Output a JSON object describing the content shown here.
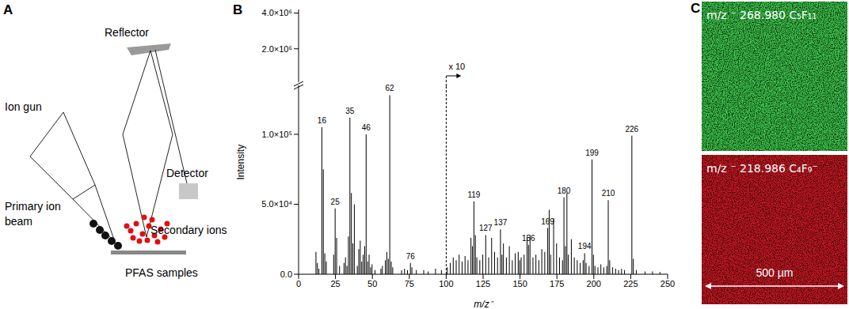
{
  "panel_labels": [
    "A",
    "B",
    "C"
  ],
  "diagram": {
    "reflector": "Reflector",
    "ion_gun": "Ion gun",
    "detector": "Detector",
    "primary_ion_beam": [
      "Primary ion",
      "beam"
    ],
    "secondary_ions": "Secondary ions",
    "sample": "PFAS samples"
  },
  "chart_data": [
    {
      "type": "bar",
      "ylim": [
        135000,
        4200000
      ],
      "yticks": [
        {
          "value": 2000000,
          "label": "2.0×10⁶"
        },
        {
          "value": 4000000,
          "label": "4.0×10⁶"
        }
      ],
      "tick_labels": "y"
    },
    {
      "type": "bar",
      "x_label": "m/z⁻",
      "y_label": "Intensity",
      "color": "#000000",
      "xlim": [
        0,
        250
      ],
      "xticks": [
        0,
        25,
        50,
        75,
        100,
        125,
        150,
        175,
        200,
        225,
        250
      ],
      "ylim": [
        0,
        135000
      ],
      "yticks": [
        {
          "value": 0,
          "label": "0.0"
        },
        {
          "value": 50000,
          "label": "5.0×10⁴"
        },
        {
          "value": 100000,
          "label": "1.0×10⁵"
        }
      ],
      "x": [
        12,
        13,
        14,
        16,
        17,
        18,
        19,
        24,
        25,
        26,
        28,
        31,
        32,
        33,
        34,
        35,
        36,
        37,
        38,
        40,
        41,
        42,
        43,
        44,
        45,
        46,
        47,
        48,
        49,
        50,
        52,
        56,
        57,
        59,
        60,
        61,
        62,
        63,
        64,
        70,
        72,
        74,
        76,
        77,
        80,
        85,
        88,
        93,
        97,
        101,
        103,
        105,
        107,
        109,
        111,
        113,
        115,
        117,
        118,
        119,
        120,
        121,
        123,
        125,
        127,
        129,
        131,
        133,
        135,
        137,
        138,
        139,
        141,
        143,
        145,
        147,
        149,
        150,
        151,
        153,
        155,
        156,
        157,
        159,
        161,
        163,
        165,
        167,
        169,
        170,
        171,
        173,
        175,
        177,
        179,
        180,
        181,
        182,
        183,
        185,
        187,
        189,
        191,
        193,
        194,
        195,
        197,
        199,
        200,
        201,
        203,
        205,
        207,
        209,
        210,
        211,
        213,
        215,
        217,
        219,
        221,
        226,
        227,
        229,
        235,
        240,
        245
      ],
      "values": [
        16000,
        8000,
        4000,
        105000,
        75000,
        15000,
        9000,
        14000,
        47000,
        26000,
        6000,
        8000,
        12000,
        6000,
        27000,
        112000,
        58000,
        22000,
        50000,
        6000,
        18000,
        24000,
        9000,
        14000,
        20000,
        100000,
        9000,
        14000,
        5000,
        7000,
        3000,
        4000,
        6000,
        10000,
        16000,
        11000,
        128000,
        9000,
        5000,
        3000,
        4000,
        3000,
        8000,
        5000,
        3000,
        3000,
        2000,
        4000,
        3000,
        5000,
        8000,
        12000,
        10000,
        14000,
        9000,
        13000,
        10000,
        26000,
        20000,
        52000,
        28000,
        12000,
        10000,
        14000,
        28000,
        12000,
        26000,
        16000,
        12000,
        32000,
        14000,
        22000,
        12000,
        20000,
        10000,
        15000,
        16000,
        10000,
        12000,
        14000,
        26000,
        21000,
        28000,
        12000,
        14000,
        10000,
        18000,
        16000,
        33000,
        46000,
        14000,
        40000,
        22000,
        12000,
        10000,
        55000,
        20000,
        58000,
        14000,
        25000,
        12000,
        10000,
        8000,
        10000,
        15000,
        8000,
        6000,
        82000,
        14000,
        6000,
        5000,
        7000,
        5000,
        6000,
        53000,
        10000,
        5000,
        4000,
        3000,
        4000,
        3000,
        99000,
        11000,
        3000,
        2000,
        2000,
        1500
      ],
      "annotations": [
        {
          "text": "16",
          "x": 16
        },
        {
          "text": "25",
          "x": 25
        },
        {
          "text": "35",
          "x": 35
        },
        {
          "text": "46",
          "x": 46
        },
        {
          "text": "62",
          "x": 62
        },
        {
          "text": "76",
          "x": 76
        },
        {
          "text": "x 10",
          "x": 100
        },
        {
          "text": "119",
          "x": 119
        },
        {
          "text": "127",
          "x": 127
        },
        {
          "text": "137",
          "x": 137
        },
        {
          "text": "156",
          "x": 156
        },
        {
          "text": "169",
          "x": 169
        },
        {
          "text": "180",
          "x": 180
        },
        {
          "text": "194",
          "x": 194
        },
        {
          "text": "199",
          "x": 199
        },
        {
          "text": "210",
          "x": 210
        },
        {
          "text": "226",
          "x": 226
        }
      ]
    }
  ],
  "images": [
    {
      "label": "m/z ⁻ 268.980 C₅F₁₁",
      "color": "#3cc64a"
    },
    {
      "label": "m/z ⁻ 218.986 C₄F₉⁻",
      "color": "#cc1822"
    }
  ],
  "scale_bar": "500 µm"
}
